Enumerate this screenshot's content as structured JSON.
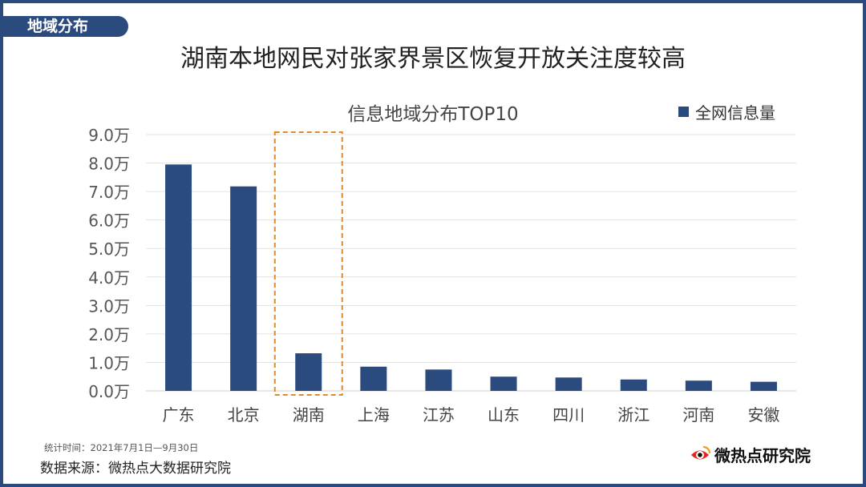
{
  "section_tag": "地域分布",
  "headline": "湖南本地网民对张家界景区恢复开放关注度较高",
  "footnote": "统计时间：2021年7月1日—9月30日",
  "source": "数据来源：微热点大数据研究院",
  "brand": {
    "name": "微热点研究院",
    "logo_icon": "weibo-eye-logo-icon"
  },
  "colors": {
    "bar": "#2b4a7e",
    "highlight": "#e08a2e",
    "frame": "#2b4a7e"
  },
  "chart_data": {
    "type": "bar",
    "title": "信息地域分布TOP10",
    "legend": {
      "label": "全网信息量",
      "position": "top-right"
    },
    "categories": [
      "广东",
      "北京",
      "湖南",
      "上海",
      "江苏",
      "山东",
      "四川",
      "浙江",
      "河南",
      "安徽"
    ],
    "series": [
      {
        "name": "全网信息量",
        "values": [
          7.95,
          7.18,
          1.32,
          0.85,
          0.75,
          0.5,
          0.47,
          0.4,
          0.36,
          0.32
        ]
      }
    ],
    "ylim": [
      0,
      9
    ],
    "yticks": [
      "0.0万",
      "1.0万",
      "2.0万",
      "3.0万",
      "4.0万",
      "5.0万",
      "6.0万",
      "7.0万",
      "8.0万",
      "9.0万"
    ],
    "unit": "万",
    "grid": true,
    "highlight_category": "湖南"
  }
}
